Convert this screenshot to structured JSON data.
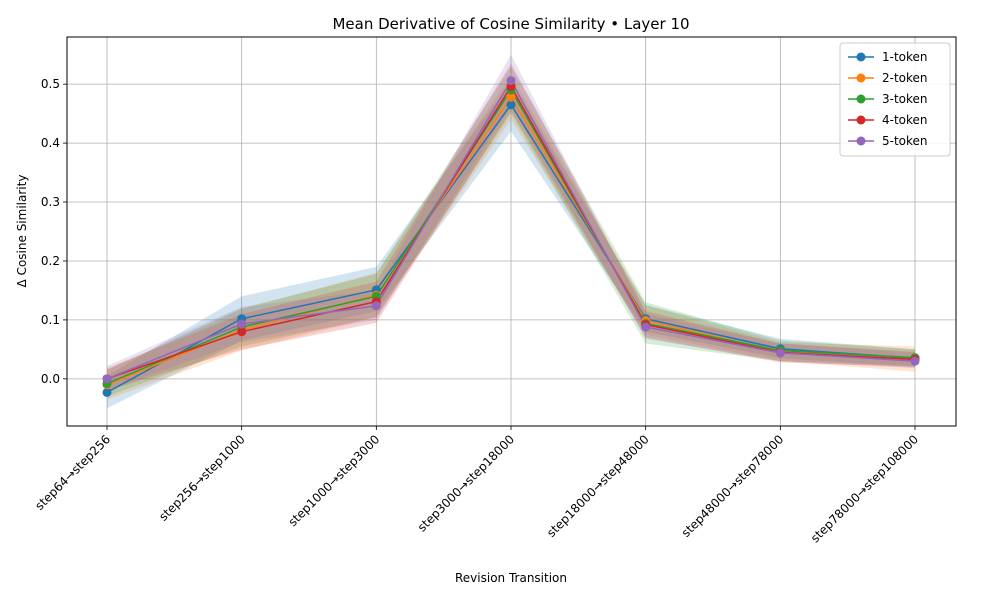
{
  "chart_data": {
    "type": "line",
    "title": "Mean Derivative of Cosine Similarity • Layer 10",
    "xlabel": "Revision Transition",
    "ylabel": "Δ Cosine Similarity",
    "categories": [
      "step64→step256",
      "step256→step1000",
      "step1000→step3000",
      "step3000→step18000",
      "step18000→step48000",
      "step48000→step78000",
      "step78000→step108000"
    ],
    "ylim": [
      -0.08,
      0.58
    ],
    "yticks": [
      0.0,
      0.1,
      0.2,
      0.3,
      0.4,
      0.5
    ],
    "ytick_labels": [
      "0.0",
      "0.1",
      "0.2",
      "0.3",
      "0.4",
      "0.5"
    ],
    "grid": true,
    "legend_position": "top-right",
    "series": [
      {
        "name": "1-token",
        "color": "#1f77b4",
        "values": [
          -0.023,
          0.102,
          0.151,
          0.465,
          0.102,
          0.051,
          0.035
        ],
        "band_low": [
          -0.05,
          0.065,
          0.115,
          0.42,
          0.08,
          0.035,
          0.02
        ],
        "band_high": [
          0.005,
          0.14,
          0.19,
          0.505,
          0.125,
          0.068,
          0.05
        ]
      },
      {
        "name": "2-token",
        "color": "#ff7f0e",
        "values": [
          -0.01,
          0.083,
          0.142,
          0.478,
          0.099,
          0.046,
          0.032
        ],
        "band_low": [
          -0.035,
          0.048,
          0.105,
          0.44,
          0.075,
          0.03,
          0.012
        ],
        "band_high": [
          0.015,
          0.118,
          0.18,
          0.515,
          0.125,
          0.062,
          0.055
        ]
      },
      {
        "name": "3-token",
        "color": "#2ca02c",
        "values": [
          -0.008,
          0.088,
          0.14,
          0.49,
          0.094,
          0.048,
          0.036
        ],
        "band_low": [
          -0.03,
          0.055,
          0.105,
          0.45,
          0.06,
          0.03,
          0.022
        ],
        "band_high": [
          0.015,
          0.12,
          0.178,
          0.53,
          0.13,
          0.065,
          0.05
        ]
      },
      {
        "name": "4-token",
        "color": "#d62728",
        "values": [
          0.0,
          0.08,
          0.131,
          0.496,
          0.092,
          0.045,
          0.033
        ],
        "band_low": [
          -0.02,
          0.05,
          0.095,
          0.455,
          0.07,
          0.028,
          0.02
        ],
        "band_high": [
          0.018,
          0.11,
          0.165,
          0.535,
          0.115,
          0.06,
          0.046
        ]
      },
      {
        "name": "5-token",
        "color": "#9467bd",
        "values": [
          0.0,
          0.093,
          0.124,
          0.506,
          0.088,
          0.044,
          0.03
        ],
        "band_low": [
          -0.02,
          0.062,
          0.1,
          0.465,
          0.068,
          0.03,
          0.018
        ],
        "band_high": [
          0.022,
          0.122,
          0.15,
          0.55,
          0.11,
          0.06,
          0.044
        ]
      }
    ]
  }
}
